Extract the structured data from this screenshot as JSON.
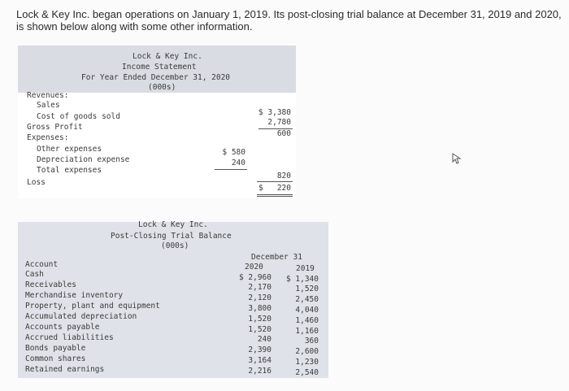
{
  "intro": {
    "line1": "Lock & Key Inc. began operations on January 1, 2019. Its post-closing trial balance at December 31, 2019 and 2020,",
    "line2": "is shown below along with some other information."
  },
  "income_statement": {
    "header": [
      "Lock & Key Inc.",
      "Income Statement",
      "For Year Ended December 31, 2020",
      "(000s)"
    ],
    "rows": {
      "revenues": "Revenues:",
      "sales": "Sales",
      "cogs": "Cost of goods sold",
      "gross_profit": "Gross Profit",
      "expenses": "Expenses:",
      "other_expenses": "Other expenses",
      "depreciation": "Depreciation expense",
      "total_expenses": "Total expenses",
      "loss": "Loss"
    },
    "values": {
      "sales": "$ 3,380",
      "cogs": "2,780",
      "gross_profit": "600",
      "other_expenses": "$ 580",
      "depreciation": "240",
      "total_expenses": "820",
      "loss_dollar": "$",
      "loss": "220"
    }
  },
  "trial_balance": {
    "header": [
      "Lock & Key Inc.",
      "Post-Closing Trial Balance",
      "(000s)"
    ],
    "period": "December 31",
    "col_label": "Account",
    "years": [
      "2020",
      "2019"
    ],
    "rows": [
      {
        "account": "Cash",
        "y2020": "$ 2,960",
        "y2019": "$ 1,340"
      },
      {
        "account": "Receivables",
        "y2020": "2,170",
        "y2019": "1,520"
      },
      {
        "account": "Merchandise inventory",
        "y2020": "2,120",
        "y2019": "2,450"
      },
      {
        "account": "Property, plant and equipment",
        "y2020": "3,800",
        "y2019": "4,040"
      },
      {
        "account": "Accumulated depreciation",
        "y2020": "1,520",
        "y2019": "1,460"
      },
      {
        "account": "Accounts payable",
        "y2020": "1,520",
        "y2019": "1,160"
      },
      {
        "account": "Accrued liabilities",
        "y2020": "240",
        "y2019": "360"
      },
      {
        "account": "Bonds payable",
        "y2020": "2,390",
        "y2019": "2,600"
      },
      {
        "account": "Common shares",
        "y2020": "3,164",
        "y2019": "1,230"
      },
      {
        "account": "Retained earnings",
        "y2020": "2,216",
        "y2019": "2,540"
      }
    ]
  }
}
